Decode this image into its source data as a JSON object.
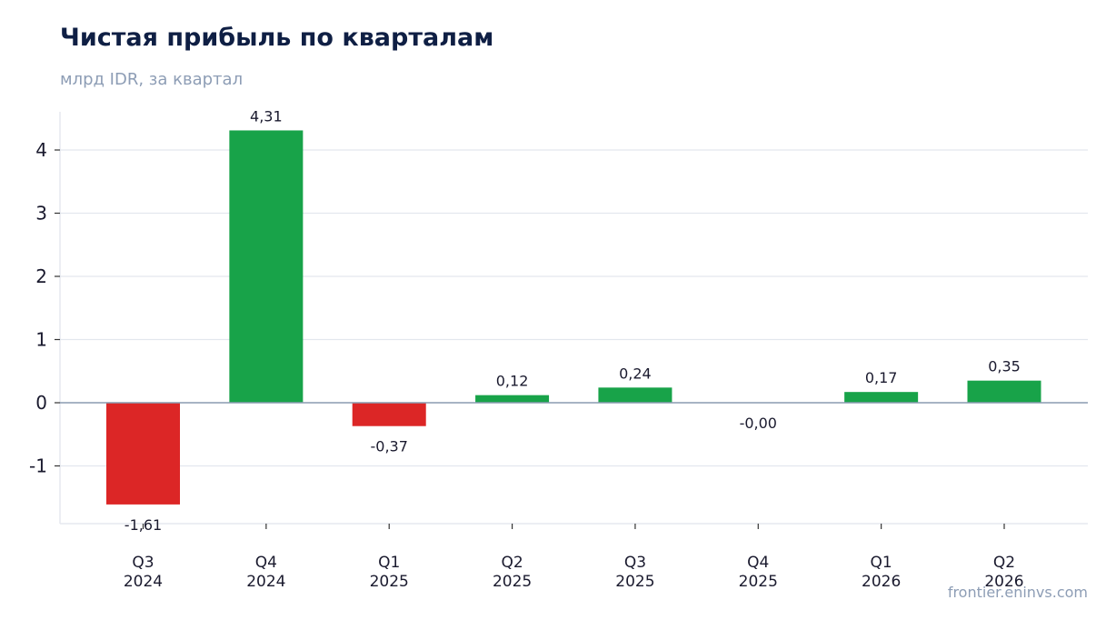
{
  "chart_data": {
    "type": "bar",
    "title": "Чистая прибыль по кварталам",
    "subtitle": "млрд IDR, за квартал",
    "categories": [
      [
        "Q3",
        "2024"
      ],
      [
        "Q4",
        "2024"
      ],
      [
        "Q1",
        "2025"
      ],
      [
        "Q2",
        "2025"
      ],
      [
        "Q3",
        "2025"
      ],
      [
        "Q4",
        "2025"
      ],
      [
        "Q1",
        "2026"
      ],
      [
        "Q2",
        "2026"
      ]
    ],
    "values": [
      -1.61,
      4.31,
      -0.37,
      0.12,
      0.24,
      -0.001,
      0.17,
      0.35
    ],
    "value_labels": [
      "-1,61",
      "4,31",
      "-0,37",
      "0,12",
      "0,24",
      "-0,00",
      "0,17",
      "0,35"
    ],
    "yticks": [
      -1,
      0,
      1,
      2,
      3,
      4
    ],
    "ytick_labels": [
      "-1",
      "0",
      "1",
      "2",
      "3",
      "4"
    ],
    "ylim": [
      -1.9,
      4.6
    ],
    "grid": true,
    "legend": "none",
    "colors": {
      "positive": "#18a349",
      "negative": "#dc2626",
      "zero_line": "#8a9bb0",
      "grid": "#e3e7ee",
      "text": "#1a1a2e"
    }
  },
  "footer": {
    "watermark": "frontier.eninvs.com"
  }
}
